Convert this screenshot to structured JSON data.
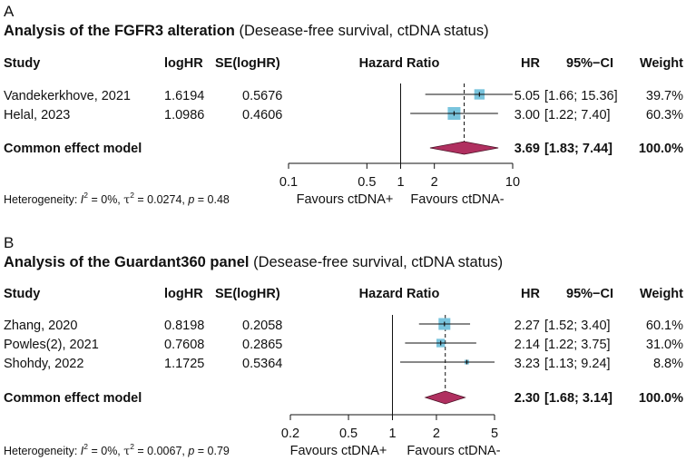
{
  "chart_data": [
    {
      "type": "forest",
      "panel_label": "A",
      "title_bold": "Analysis of the FGFR3 alteration",
      "title_rest": " (Desease-free survival, ctDNA status)",
      "columns": [
        "Study",
        "logHR",
        "SE(logHR)",
        "Hazard Ratio",
        "HR",
        "95%−CI",
        "Weight"
      ],
      "studies": [
        {
          "name": "Vandekerkhove, 2021",
          "loghr": "1.6194",
          "se": "0.5676",
          "hr": 5.05,
          "lo": 1.66,
          "hi": 15.36,
          "hr_text": "5.05",
          "ci_text": "[1.66; 15.36]",
          "weight_text": "39.7%"
        },
        {
          "name": "Helal, 2023",
          "loghr": "1.0986",
          "se": "0.4606",
          "hr": 3.0,
          "lo": 1.22,
          "hi": 7.4,
          "hr_text": "3.00",
          "ci_text": "[1.22;  7.40]",
          "weight_text": "60.3%"
        }
      ],
      "summary": {
        "label": "Common effect model",
        "hr": 3.69,
        "lo": 1.83,
        "hi": 7.44,
        "hr_text": "3.69",
        "ci_text": "[1.83;  7.44]",
        "weight_text": "100.0%"
      },
      "axis_ticks": [
        0.1,
        0.5,
        1,
        2,
        10
      ],
      "axis_tick_labels": [
        "0.1",
        "0.5",
        "1",
        "2",
        "10"
      ],
      "xlim": [
        0.1,
        10
      ],
      "favours_left": "Favours ctDNA+",
      "favours_right": "Favours ctDNA-",
      "heterogeneity": {
        "prefix": "Heterogeneity: ",
        "i2_symbol": "I",
        "i2_sup": "2",
        "i2_value": " = 0%, ",
        "tau_symbol": "τ",
        "tau_sup": "2",
        "tau_value": " = 0.0274, ",
        "p_symbol": "p",
        "p_value": " = 0.48"
      }
    },
    {
      "type": "forest",
      "panel_label": "B",
      "title_bold": "Analysis of the Guardant360 panel",
      "title_rest": " (Desease-free survival, ctDNA status)",
      "columns": [
        "Study",
        "logHR",
        "SE(logHR)",
        "Hazard Ratio",
        "HR",
        "95%−CI",
        "Weight"
      ],
      "studies": [
        {
          "name": "Zhang, 2020",
          "loghr": "0.8198",
          "se": "0.2058",
          "hr": 2.27,
          "lo": 1.52,
          "hi": 3.4,
          "hr_text": "2.27",
          "ci_text": "[1.52; 3.40]",
          "weight_text": "60.1%"
        },
        {
          "name": "Powles(2), 2021",
          "loghr": "0.7608",
          "se": "0.2865",
          "hr": 2.14,
          "lo": 1.22,
          "hi": 3.75,
          "hr_text": "2.14",
          "ci_text": "[1.22; 3.75]",
          "weight_text": "31.0%"
        },
        {
          "name": "Shohdy, 2022",
          "loghr": "1.1725",
          "se": "0.5364",
          "hr": 3.23,
          "lo": 1.13,
          "hi": 9.24,
          "hr_text": "3.23",
          "ci_text": "[1.13; 9.24]",
          "weight_text": "8.8%"
        }
      ],
      "summary": {
        "label": "Common effect model",
        "hr": 2.3,
        "lo": 1.68,
        "hi": 3.14,
        "hr_text": "2.30",
        "ci_text": "[1.68; 3.14]",
        "weight_text": "100.0%"
      },
      "axis_ticks": [
        0.2,
        0.5,
        1,
        2,
        5
      ],
      "axis_tick_labels": [
        "0.2",
        "0.5",
        "1",
        "2",
        "5"
      ],
      "xlim": [
        0.2,
        5
      ],
      "favours_left": "Favours ctDNA+",
      "favours_right": "Favours ctDNA-",
      "heterogeneity": {
        "prefix": "Heterogeneity: ",
        "i2_symbol": "I",
        "i2_sup": "2",
        "i2_value": " = 0%, ",
        "tau_symbol": "τ",
        "tau_sup": "2",
        "tau_value": " = 0.0067, ",
        "p_symbol": "p",
        "p_value": " = 0.79"
      }
    }
  ],
  "colors": {
    "square": "#79c4dd",
    "diamond": "#b03060",
    "line": "#111111",
    "dashed": "#111111"
  }
}
